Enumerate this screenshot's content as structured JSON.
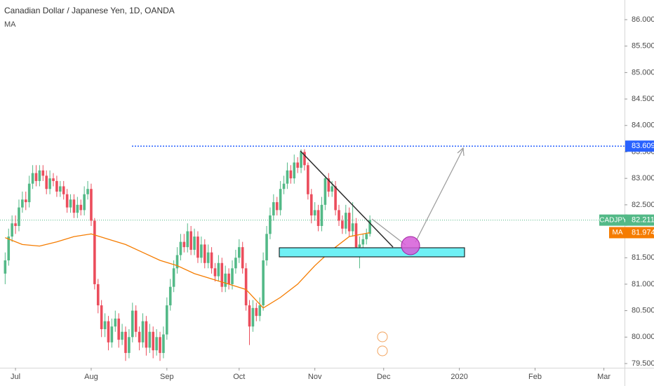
{
  "chart_data": {
    "type": "candlestick",
    "title": "Canadian Dollar / Japanese Yen, 1D, OANDA",
    "symbol": "CADJPY",
    "up_color": "#53b987",
    "down_color": "#eb4d5c",
    "open": [
      81.2,
      81.45,
      81.9,
      82.15,
      82.1,
      82.45,
      82.6,
      82.55,
      82.9,
      83.1,
      82.95,
      83.15,
      83.05,
      82.8,
      83.0,
      82.95,
      82.75,
      82.85,
      82.7,
      82.45,
      82.6,
      82.35,
      82.5,
      82.4,
      82.7,
      82.8,
      82.2,
      81.0,
      80.6,
      80.15,
      80.3,
      79.9,
      80.2,
      80.35,
      79.95,
      80.1,
      79.7,
      80.0,
      80.5,
      80.1,
      79.9,
      80.3,
      79.8,
      80.1,
      79.75,
      80.0,
      79.7,
      80.05,
      80.6,
      80.95,
      81.3,
      81.55,
      81.8,
      81.7,
      82.0,
      81.65,
      81.9,
      81.5,
      81.75,
      81.4,
      81.6,
      81.3,
      81.15,
      81.4,
      80.95,
      81.2,
      81.0,
      81.3,
      81.5,
      81.7,
      81.3,
      80.6,
      80.2,
      80.55,
      80.4,
      80.6,
      81.45,
      81.95,
      82.3,
      82.55,
      82.4,
      82.8,
      82.9,
      83.15,
      83.0,
      83.3,
      83.2,
      83.5,
      83.25,
      82.7,
      82.3,
      82.4,
      82.1,
      82.5,
      83.0,
      82.75,
      82.85,
      82.4,
      82.2,
      82.05,
      82.35,
      82.0,
      82.15,
      81.7,
      81.75,
      81.85,
      81.95
    ],
    "high": [
      81.6,
      82.05,
      82.3,
      82.3,
      82.6,
      82.75,
      82.75,
      83.05,
      83.25,
      83.25,
      83.25,
      83.25,
      83.15,
      83.15,
      83.1,
      83.05,
      82.95,
      82.95,
      82.8,
      82.7,
      82.7,
      82.65,
      82.6,
      82.85,
      82.95,
      82.9,
      82.25,
      81.1,
      80.7,
      80.45,
      80.4,
      80.35,
      80.5,
      80.45,
      80.25,
      80.2,
      80.15,
      80.65,
      80.6,
      80.2,
      80.45,
      80.4,
      80.25,
      80.2,
      80.15,
      80.1,
      80.2,
      80.75,
      81.1,
      81.45,
      81.7,
      81.95,
      81.95,
      82.15,
      82.1,
      82.05,
      82.0,
      81.9,
      81.85,
      81.75,
      81.7,
      81.4,
      81.55,
      81.5,
      81.35,
      81.3,
      81.45,
      81.65,
      81.85,
      81.8,
      81.4,
      80.7,
      80.7,
      80.65,
      80.75,
      81.6,
      82.1,
      82.45,
      82.7,
      82.65,
      82.95,
      83.05,
      83.3,
      83.25,
      83.45,
      83.4,
      83.55,
      83.55,
      83.3,
      82.8,
      82.55,
      82.5,
      82.65,
      83.05,
      83.1,
      82.95,
      82.95,
      82.5,
      82.3,
      82.5,
      82.45,
      82.55,
      82.25,
      81.9,
      81.95,
      82.05,
      82.3
    ],
    "low": [
      81.0,
      81.35,
      81.8,
      81.95,
      82.0,
      82.35,
      82.4,
      82.45,
      82.8,
      82.85,
      82.85,
      82.95,
      82.7,
      82.7,
      82.85,
      82.65,
      82.65,
      82.6,
      82.35,
      82.35,
      82.25,
      82.25,
      82.3,
      82.3,
      82.6,
      82.1,
      80.9,
      80.45,
      80.0,
      80.0,
      79.75,
      79.8,
      80.1,
      79.8,
      79.85,
      79.55,
      79.6,
      79.9,
      80.0,
      79.75,
      79.8,
      79.65,
      79.7,
      79.6,
      79.65,
      79.55,
      79.6,
      79.95,
      80.5,
      80.85,
      81.2,
      81.45,
      81.6,
      81.6,
      81.55,
      81.55,
      81.4,
      81.4,
      81.3,
      81.3,
      81.2,
      81.05,
      81.05,
      80.85,
      80.85,
      80.9,
      80.9,
      81.2,
      81.4,
      81.2,
      80.5,
      79.85,
      80.1,
      80.3,
      80.3,
      80.5,
      81.35,
      81.85,
      82.2,
      82.3,
      82.3,
      82.7,
      82.8,
      82.9,
      82.9,
      83.1,
      83.1,
      83.15,
      82.6,
      82.15,
      82.2,
      82.0,
      82.0,
      82.4,
      82.65,
      82.65,
      82.3,
      82.1,
      81.95,
      81.95,
      81.9,
      81.9,
      81.6,
      81.3,
      81.65,
      81.75,
      81.9
    ],
    "close": [
      81.45,
      81.9,
      82.15,
      82.1,
      82.45,
      82.6,
      82.55,
      82.9,
      83.1,
      82.95,
      83.15,
      83.05,
      82.8,
      83.0,
      82.95,
      82.75,
      82.85,
      82.7,
      82.45,
      82.6,
      82.35,
      82.5,
      82.4,
      82.7,
      82.8,
      82.2,
      81.0,
      80.6,
      80.15,
      80.3,
      79.9,
      80.2,
      80.35,
      79.95,
      80.1,
      79.7,
      80.0,
      80.5,
      80.1,
      79.9,
      80.3,
      79.8,
      80.1,
      79.75,
      80.0,
      79.7,
      80.05,
      80.6,
      80.95,
      81.3,
      81.55,
      81.8,
      81.7,
      82.0,
      81.65,
      81.9,
      81.5,
      81.75,
      81.4,
      81.6,
      81.3,
      81.15,
      81.4,
      80.95,
      81.2,
      81.0,
      81.3,
      81.5,
      81.7,
      81.3,
      80.6,
      80.2,
      80.55,
      80.4,
      80.6,
      81.45,
      81.95,
      82.3,
      82.55,
      82.4,
      82.8,
      82.9,
      83.15,
      83.0,
      83.3,
      83.2,
      83.5,
      83.25,
      82.7,
      82.3,
      82.4,
      82.1,
      82.5,
      83.0,
      82.75,
      82.85,
      82.4,
      82.2,
      82.05,
      82.35,
      82.0,
      82.15,
      81.7,
      81.75,
      81.85,
      81.95,
      82.211
    ],
    "ma": {
      "name": "MA",
      "color": "#f57c00",
      "x": [
        0,
        5,
        10,
        15,
        20,
        25,
        30,
        35,
        40,
        45,
        50,
        55,
        60,
        65,
        70,
        75,
        80,
        85,
        90,
        95,
        100,
        106
      ],
      "values": [
        81.88,
        81.75,
        81.72,
        81.8,
        81.9,
        81.95,
        81.85,
        81.75,
        81.6,
        81.45,
        81.35,
        81.2,
        81.1,
        81.0,
        80.9,
        80.55,
        80.75,
        81.0,
        81.35,
        81.65,
        81.9,
        81.974
      ]
    },
    "target_level": 83.609,
    "xlim": [
      -1.5,
      180
    ],
    "xticks": [
      {
        "value": 3,
        "label": "Jul"
      },
      {
        "value": 25,
        "label": "Aug"
      },
      {
        "value": 47,
        "label": "Sep"
      },
      {
        "value": 68,
        "label": "Oct"
      },
      {
        "value": 90,
        "label": "Nov"
      },
      {
        "value": 110,
        "label": "Dec"
      },
      {
        "value": 132,
        "label": "2020"
      },
      {
        "value": 154,
        "label": "Feb"
      },
      {
        "value": 174,
        "label": "Mar"
      }
    ],
    "ylim": [
      79.5,
      86
    ],
    "yticks": [
      {
        "value": 79.5,
        "label": "79.500"
      },
      {
        "value": 80,
        "label": "80.000"
      },
      {
        "value": 80.5,
        "label": "80.500"
      },
      {
        "value": 81,
        "label": "81.000"
      },
      {
        "value": 81.5,
        "label": "81.500"
      },
      {
        "value": 82,
        "label": "82.000"
      },
      {
        "value": 82.5,
        "label": "82.500"
      },
      {
        "value": 83,
        "label": "83.000"
      },
      {
        "value": 83.5,
        "label": "83.500"
      },
      {
        "value": 84,
        "label": "84.000"
      },
      {
        "value": 84.5,
        "label": "84.500"
      },
      {
        "value": 85,
        "label": "85.000"
      },
      {
        "value": 85.5,
        "label": "85.500"
      },
      {
        "value": 86,
        "label": "86.000"
      }
    ]
  }
}
